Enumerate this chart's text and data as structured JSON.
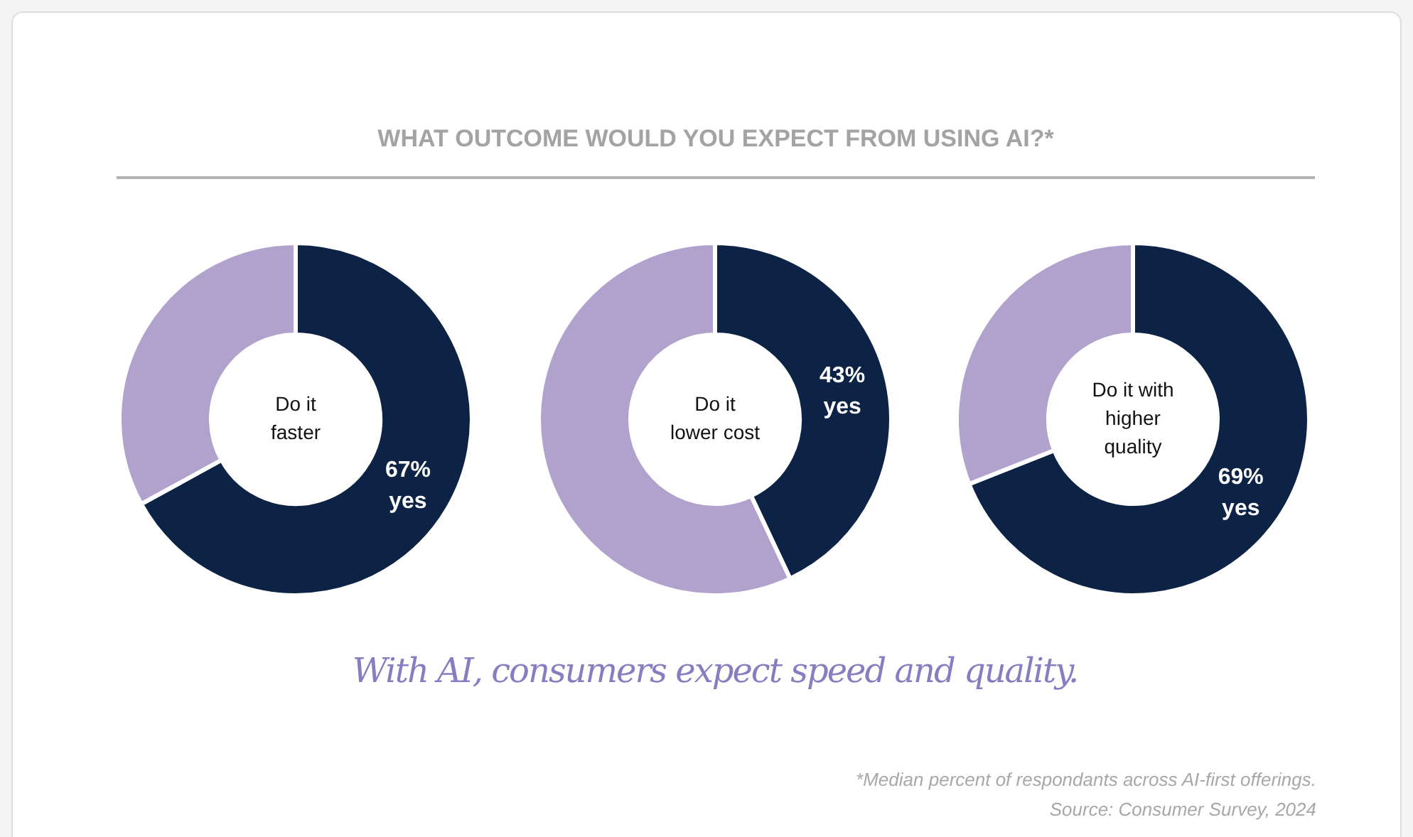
{
  "chart_data": [
    {
      "type": "donut",
      "annotations": [
        "WHAT OUTCOME WOULD YOU EXPECT FROM USING AI?*"
      ],
      "title": "Do it faster",
      "categories": [
        "yes",
        null
      ],
      "values": [
        67,
        33
      ],
      "colors": [
        "#0c2345",
        "#b1a1cd"
      ],
      "value_labels": [
        "67%",
        null
      ]
    },
    {
      "type": "donut",
      "title": "Do it lower cost",
      "categories": [
        "yes",
        null
      ],
      "values": [
        43,
        57
      ],
      "colors": [
        "#0c2345",
        "#b1a1cd"
      ],
      "value_labels": [
        "43%",
        null
      ]
    },
    {
      "type": "donut",
      "annotations": [
        "With AI, consumers expect speed and quality.",
        "*Median percent of respondants across AI-first offerings.",
        "Source: Consumer Survey, 2024"
      ],
      "title": "Do it with higher quality",
      "categories": [
        "yes",
        null
      ],
      "values": [
        69,
        31
      ],
      "colors": [
        "#0c2345",
        "#b1a1cd"
      ],
      "value_labels": [
        "69%",
        null
      ]
    }
  ]
}
